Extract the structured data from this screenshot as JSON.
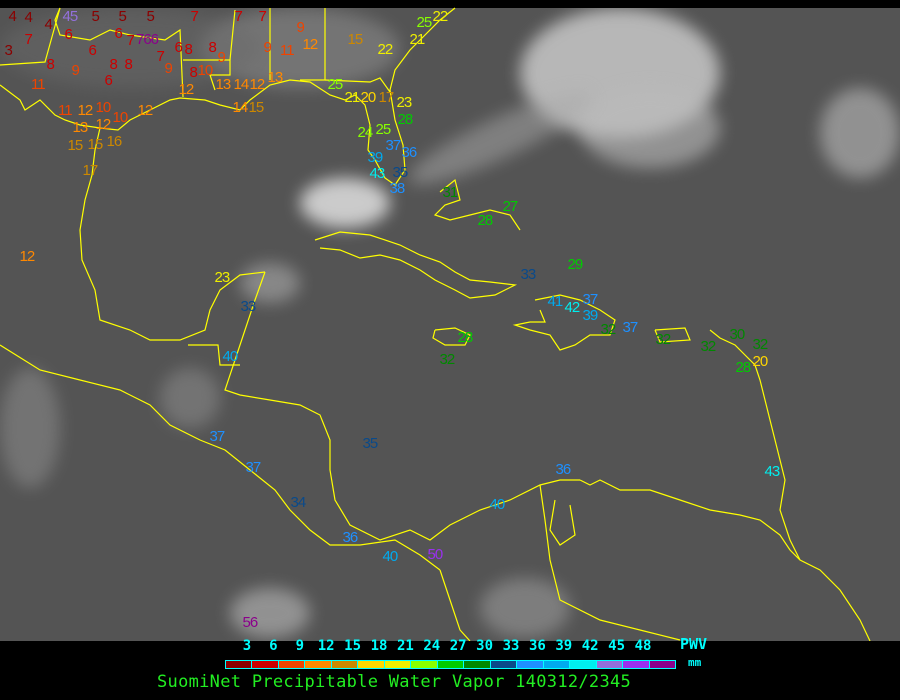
{
  "title": "SuomiNet Precipitable Water Vapor 140312/2345",
  "legend": {
    "unit_label": "PWV",
    "unit": "mm",
    "ticks": [
      "3",
      "6",
      "9",
      "12",
      "15",
      "18",
      "21",
      "24",
      "27",
      "30",
      "33",
      "36",
      "39",
      "42",
      "45",
      "48"
    ],
    "colors": [
      "#8b0000",
      "#cc0000",
      "#ee4400",
      "#ff8800",
      "#cc8800",
      "#ffd700",
      "#eeee00",
      "#88ff00",
      "#00cc00",
      "#008800",
      "#0a4a8a",
      "#1e90ff",
      "#00aaee",
      "#00eeee",
      "#9370db",
      "#9a30ee",
      "#8b008b"
    ]
  },
  "coastline_color": "#ffff00",
  "stations": [
    "4",
    "4",
    "4",
    "45",
    "5",
    "5",
    "5",
    "6",
    "6",
    "7",
    "3",
    "8",
    "9",
    "6",
    "8",
    "8",
    "7",
    "766",
    "6",
    "7",
    "9",
    "6",
    "8",
    "8",
    "9",
    "10",
    "8",
    "7",
    "7",
    "7",
    "9",
    "11",
    "9",
    "12",
    "15",
    "11",
    "12",
    "11",
    "12",
    "10",
    "13",
    "12",
    "10",
    "12",
    "15",
    "15",
    "16",
    "17",
    "13",
    "14",
    "12",
    "13",
    "14",
    "15",
    "12",
    "22",
    "25",
    "22",
    "21",
    "25",
    "21",
    "20",
    "17",
    "23",
    "28",
    "24",
    "25",
    "37",
    "36",
    "39",
    "43",
    "35",
    "38",
    "31",
    "28",
    "27",
    "23",
    "33",
    "40",
    "37",
    "37",
    "34",
    "36",
    "40",
    "50",
    "56",
    "35",
    "36",
    "40",
    "43",
    "33",
    "29",
    "41",
    "42",
    "37",
    "39",
    "32",
    "37",
    "32",
    "28",
    "32",
    "32",
    "30",
    "32",
    "20",
    "28"
  ]
}
